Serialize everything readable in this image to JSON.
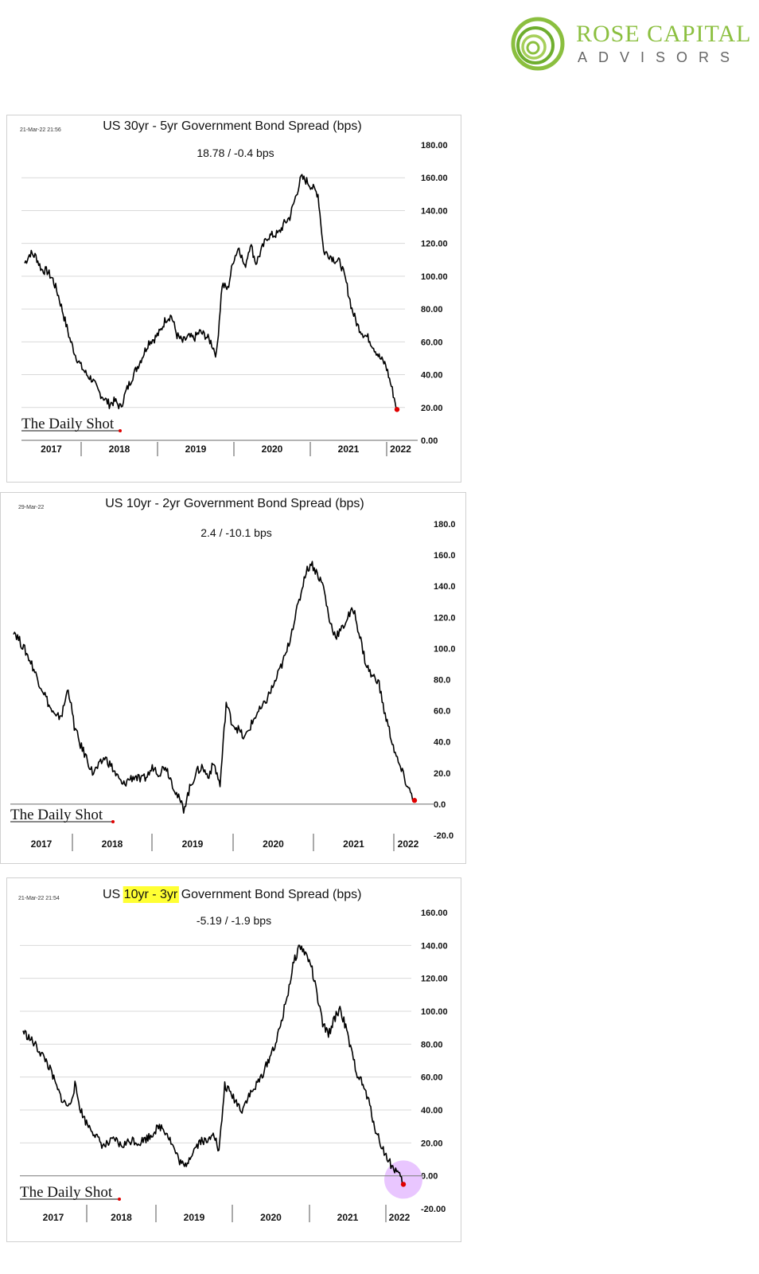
{
  "logo": {
    "line1": "ROSE CAPITAL",
    "line2": "ADVISORS",
    "color": "#8bbf3f"
  },
  "chart_data": [
    {
      "type": "line",
      "date": "21-Mar-22 21:56",
      "title": "US 30yr - 5yr Government Bond Spread (bps)",
      "subtitle": "18.78  /  -0.4 bps",
      "brand": "The Daily Shot",
      "ylim": [
        0,
        180
      ],
      "yticks": [
        "180.00",
        "160.00",
        "140.00",
        "120.00",
        "100.00",
        "80.00",
        "60.00",
        "40.00",
        "20.00",
        "0.00"
      ],
      "xticks": [
        "2017",
        "2018",
        "2019",
        "2020",
        "2021",
        "2022"
      ],
      "grid": true,
      "x": [
        "2016-09",
        "2016-10",
        "2016-11",
        "2016-12",
        "2017-01",
        "2017-02",
        "2017-03",
        "2017-04",
        "2017-05",
        "2017-06",
        "2017-07",
        "2017-08",
        "2017-09",
        "2017-10",
        "2017-11",
        "2017-12",
        "2018-01",
        "2018-02",
        "2018-03",
        "2018-04",
        "2018-05",
        "2018-06",
        "2018-07",
        "2018-08",
        "2018-09",
        "2018-10",
        "2018-11",
        "2018-12",
        "2019-01",
        "2019-02",
        "2019-03",
        "2019-04",
        "2019-05",
        "2019-06",
        "2019-07",
        "2019-08",
        "2019-09",
        "2019-10",
        "2019-11",
        "2019-12",
        "2020-01",
        "2020-02",
        "2020-03",
        "2020-04",
        "2020-05",
        "2020-06",
        "2020-07",
        "2020-08",
        "2020-09",
        "2020-10",
        "2020-11",
        "2020-12",
        "2021-01",
        "2021-02",
        "2021-03",
        "2021-04",
        "2021-05",
        "2021-06",
        "2021-07",
        "2021-08",
        "2021-09",
        "2021-10",
        "2021-11",
        "2021-12",
        "2022-01",
        "2022-02",
        "2022-03"
      ],
      "values": [
        108,
        114,
        112,
        104,
        103,
        98,
        88,
        75,
        62,
        52,
        45,
        40,
        37,
        30,
        26,
        22,
        24,
        20,
        30,
        38,
        45,
        52,
        60,
        62,
        66,
        74,
        76,
        64,
        60,
        63,
        62,
        66,
        64,
        60,
        52,
        95,
        92,
        110,
        118,
        105,
        120,
        108,
        116,
        124,
        125,
        126,
        132,
        136,
        148,
        160,
        158,
        154,
        150,
        115,
        113,
        110,
        108,
        96,
        80,
        70,
        65,
        62,
        56,
        50,
        46,
        33,
        18.78
      ],
      "marker": "end point red"
    },
    {
      "type": "line",
      "date": "29-Mar-22",
      "title": "US 10yr - 2yr Government Bond Spread (bps)",
      "subtitle": "2.4  /  -10.1 bps",
      "brand": "The Daily Shot",
      "ylim": [
        -20,
        180
      ],
      "yticks": [
        "180.0",
        "160.0",
        "140.0",
        "120.0",
        "100.0",
        "80.0",
        "60.0",
        "40.0",
        "20.0",
        "0.0",
        "-20.0"
      ],
      "xticks": [
        "2017",
        "2018",
        "2019",
        "2020",
        "2021",
        "2022"
      ],
      "grid": false,
      "x": [
        "2016-09",
        "2016-10",
        "2016-11",
        "2016-12",
        "2017-01",
        "2017-02",
        "2017-03",
        "2017-04",
        "2017-05",
        "2017-06",
        "2017-07",
        "2017-08",
        "2017-09",
        "2017-10",
        "2017-11",
        "2017-12",
        "2018-01",
        "2018-02",
        "2018-03",
        "2018-04",
        "2018-05",
        "2018-06",
        "2018-07",
        "2018-08",
        "2018-09",
        "2018-10",
        "2018-11",
        "2018-12",
        "2019-01",
        "2019-02",
        "2019-03",
        "2019-04",
        "2019-05",
        "2019-06",
        "2019-07",
        "2019-08",
        "2019-09",
        "2019-10",
        "2019-11",
        "2019-12",
        "2020-01",
        "2020-02",
        "2020-03",
        "2020-04",
        "2020-05",
        "2020-06",
        "2020-07",
        "2020-08",
        "2020-09",
        "2020-10",
        "2020-11",
        "2020-12",
        "2021-01",
        "2021-02",
        "2021-03",
        "2021-04",
        "2021-05",
        "2021-06",
        "2021-07",
        "2021-08",
        "2021-09",
        "2021-10",
        "2021-11",
        "2021-12",
        "2022-01",
        "2022-02",
        "2022-03"
      ],
      "values": [
        112,
        105,
        98,
        90,
        80,
        72,
        62,
        55,
        58,
        75,
        50,
        38,
        30,
        20,
        24,
        30,
        25,
        18,
        12,
        16,
        18,
        15,
        18,
        24,
        20,
        25,
        15,
        5,
        -3,
        10,
        20,
        24,
        18,
        26,
        12,
        65,
        52,
        48,
        42,
        50,
        58,
        62,
        70,
        78,
        88,
        98,
        115,
        130,
        148,
        155,
        148,
        140,
        118,
        108,
        112,
        120,
        125,
        108,
        90,
        82,
        80,
        60,
        45,
        30,
        20,
        10,
        2.4
      ],
      "marker": "end point red"
    },
    {
      "type": "line",
      "date": "21-Mar-22 21:54",
      "title_prefix": "US ",
      "title_highlight": "10yr - 3yr",
      "title_suffix": " Government Bond Spread (bps)",
      "highlight_color": "#ffff33",
      "subtitle": "-5.19  /  -1.9 bps",
      "brand": "The Daily Shot",
      "ylim": [
        -20,
        160
      ],
      "yticks": [
        "160.00",
        "140.00",
        "120.00",
        "100.00",
        "80.00",
        "60.00",
        "40.00",
        "20.00",
        "0.00",
        "-20.00"
      ],
      "xticks": [
        "2017",
        "2018",
        "2019",
        "2020",
        "2021",
        "2022"
      ],
      "grid": true,
      "x": [
        "2016-09",
        "2016-10",
        "2016-11",
        "2016-12",
        "2017-01",
        "2017-02",
        "2017-03",
        "2017-04",
        "2017-05",
        "2017-06",
        "2017-07",
        "2017-08",
        "2017-09",
        "2017-10",
        "2017-11",
        "2017-12",
        "2018-01",
        "2018-02",
        "2018-03",
        "2018-04",
        "2018-05",
        "2018-06",
        "2018-07",
        "2018-08",
        "2018-09",
        "2018-10",
        "2018-11",
        "2018-12",
        "2019-01",
        "2019-02",
        "2019-03",
        "2019-04",
        "2019-05",
        "2019-06",
        "2019-07",
        "2019-08",
        "2019-09",
        "2019-10",
        "2019-11",
        "2019-12",
        "2020-01",
        "2020-02",
        "2020-03",
        "2020-04",
        "2020-05",
        "2020-06",
        "2020-07",
        "2020-08",
        "2020-09",
        "2020-10",
        "2020-11",
        "2020-12",
        "2021-01",
        "2021-02",
        "2021-03",
        "2021-04",
        "2021-05",
        "2021-06",
        "2021-07",
        "2021-08",
        "2021-09",
        "2021-10",
        "2021-11",
        "2021-12",
        "2022-01",
        "2022-02",
        "2022-03"
      ],
      "values": [
        88,
        84,
        80,
        75,
        70,
        62,
        52,
        45,
        42,
        55,
        40,
        32,
        28,
        22,
        18,
        20,
        22,
        18,
        20,
        22,
        20,
        22,
        24,
        28,
        30,
        26,
        18,
        10,
        5,
        12,
        18,
        22,
        20,
        28,
        14,
        55,
        50,
        45,
        40,
        48,
        52,
        58,
        65,
        74,
        82,
        96,
        112,
        130,
        140,
        135,
        128,
        110,
        92,
        86,
        95,
        102,
        90,
        75,
        62,
        55,
        45,
        30,
        20,
        12,
        6,
        2,
        -5.19
      ],
      "marker": "end point red",
      "highlight_circle_color": "#e9c6ff"
    }
  ]
}
